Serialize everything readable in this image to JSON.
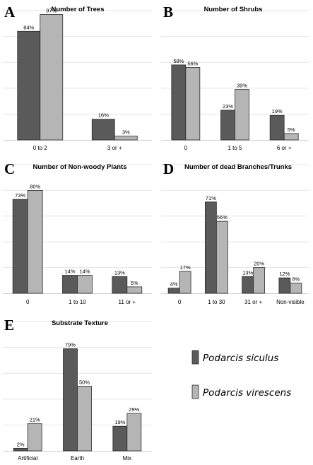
{
  "colors": {
    "siculus": "#5a5a5a",
    "virescens": "#b5b5b5",
    "outline": "#2b2b2b",
    "grid": "#e4e4e4"
  },
  "legend": {
    "items": [
      "Podarcis siculus",
      "Podarcis virescens"
    ]
  },
  "chart_data": [
    {
      "letter": "A",
      "type": "bar",
      "title": "Number of Trees",
      "categories": [
        "0 to 2",
        "3 or +"
      ],
      "ylim": [
        0,
        100
      ],
      "series": [
        {
          "name": "Podarcis siculus",
          "values": [
            84,
            16
          ]
        },
        {
          "name": "Podarcis virescens",
          "values": [
            97,
            3
          ]
        }
      ]
    },
    {
      "letter": "B",
      "type": "bar",
      "title": "Number of Shrubs",
      "categories": [
        "0",
        "1 to 5",
        "6 or +"
      ],
      "ylim": [
        0,
        100
      ],
      "series": [
        {
          "name": "Podarcis siculus",
          "values": [
            58,
            23,
            19
          ]
        },
        {
          "name": "Podarcis virescens",
          "values": [
            56,
            39,
            5
          ]
        }
      ]
    },
    {
      "letter": "C",
      "type": "bar",
      "title": "Number of Non-woody Plants",
      "categories": [
        "0",
        "1 to 10",
        "11 or +"
      ],
      "ylim": [
        0,
        100
      ],
      "series": [
        {
          "name": "Podarcis siculus",
          "values": [
            73,
            14,
            13
          ]
        },
        {
          "name": "Podarcis virescens",
          "values": [
            80,
            14,
            5
          ]
        }
      ]
    },
    {
      "letter": "D",
      "type": "bar",
      "title": "Number of dead Branches/Trunks",
      "categories": [
        "0",
        "1 to 30",
        "31 or +",
        "Non-visible"
      ],
      "ylim": [
        0,
        100
      ],
      "series": [
        {
          "name": "Podarcis siculus",
          "values": [
            4,
            71,
            13,
            12
          ]
        },
        {
          "name": "Podarcis virescens",
          "values": [
            17,
            56,
            20,
            8
          ]
        }
      ]
    },
    {
      "letter": "E",
      "type": "bar",
      "title": "Substrate Texture",
      "categories": [
        "Artificial",
        "Earth",
        "Mix"
      ],
      "ylim": [
        0,
        100
      ],
      "series": [
        {
          "name": "Podarcis siculus",
          "values": [
            2,
            79,
            19
          ]
        },
        {
          "name": "Podarcis virescens",
          "values": [
            21,
            50,
            29
          ]
        }
      ]
    }
  ]
}
